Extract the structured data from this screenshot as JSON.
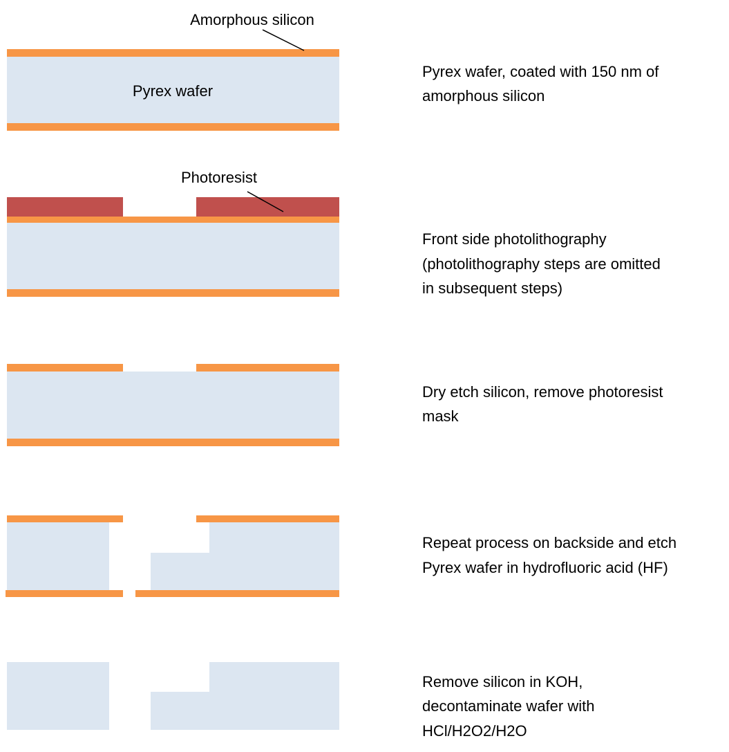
{
  "labels": {
    "amorphous_silicon": "Amorphous silicon",
    "pyrex_wafer": "Pyrex wafer",
    "photoresist": "Photoresist"
  },
  "steps": [
    {
      "lines": [
        "Pyrex wafer, coated with 150 nm of",
        "amorphous silicon"
      ]
    },
    {
      "lines": [
        "Front side photolithography",
        "(photolithography steps are omitted",
        "in subsequent steps)"
      ]
    },
    {
      "lines": [
        "Dry etch silicon, remove photoresist",
        "mask"
      ]
    },
    {
      "lines": [
        "Repeat process on backside and etch",
        "Pyrex wafer in hydrofluoric acid (HF)"
      ]
    },
    {
      "lines": [
        "Remove silicon in KOH,",
        "decontaminate wafer with",
        "HCl/H2O2/H2O"
      ]
    }
  ]
}
